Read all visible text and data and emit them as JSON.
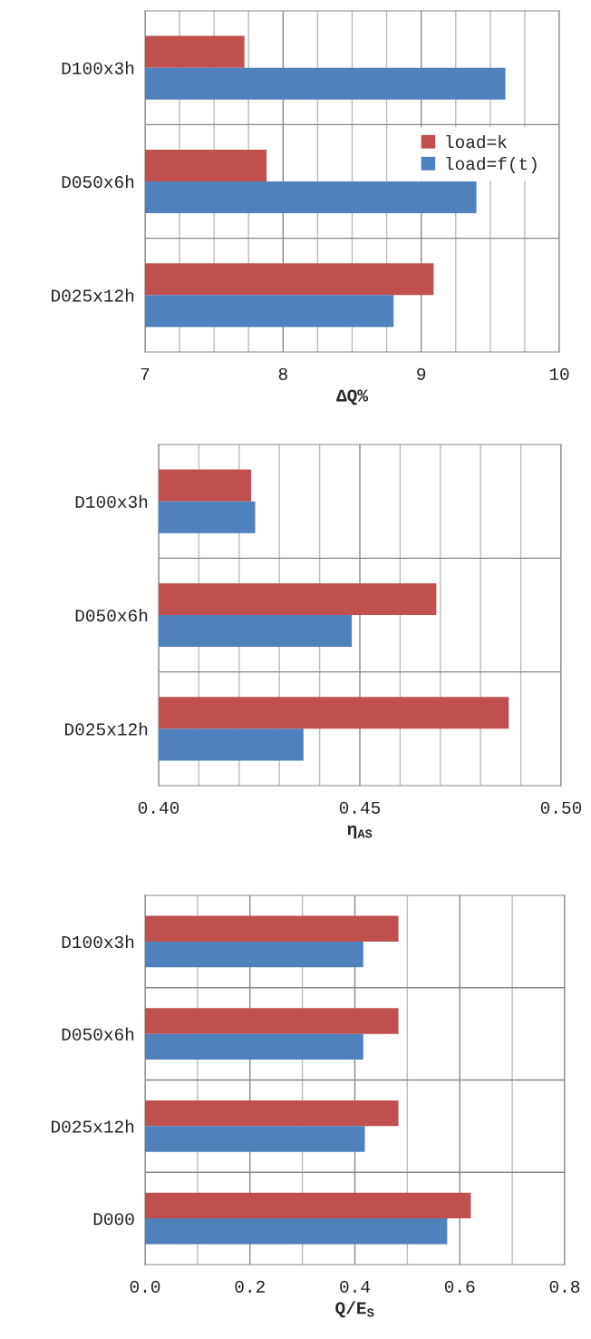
{
  "chart_data": [
    {
      "type": "bar",
      "orientation": "horizontal",
      "categories": [
        "D100x3h",
        "D050x6h",
        "D025x12h"
      ],
      "xlabel": "ΔQ%",
      "series": [
        {
          "name": "load=k",
          "color": "#c0504d",
          "values": [
            7.72,
            7.88,
            9.09
          ]
        },
        {
          "name": "load=f(t)",
          "color": "#4f81bd",
          "values": [
            9.61,
            9.4,
            8.8
          ]
        }
      ],
      "xlim": [
        7,
        10
      ],
      "xticks": [
        7,
        {
          "value": 7.25,
          "label": null
        },
        {
          "value": 7.5,
          "label": null
        },
        {
          "value": 7.75,
          "label": null
        },
        8,
        {
          "value": 8.25,
          "label": null
        },
        {
          "value": 8.5,
          "label": null
        },
        {
          "value": 8.75,
          "label": null
        },
        9,
        {
          "value": 9.25,
          "label": null
        },
        {
          "value": 9.5,
          "label": null
        },
        {
          "value": 9.75,
          "label": null
        },
        10
      ],
      "grid": true,
      "legend": "center right"
    },
    {
      "type": "bar",
      "orientation": "horizontal",
      "categories": [
        "D100x3h",
        "D050x6h",
        "D025x12h"
      ],
      "xlabel": "η$_{AS}$",
      "series": [
        {
          "color": "#c0504d",
          "values": [
            0.423,
            0.469,
            0.487
          ]
        },
        {
          "color": "#4f81bd",
          "values": [
            0.424,
            0.448,
            0.436
          ]
        }
      ],
      "xlim": [
        0.4,
        0.5
      ],
      "xticks": [
        {
          "value": 0.4,
          "label": "0.40"
        },
        {
          "value": 0.41,
          "label": null
        },
        {
          "value": 0.42,
          "label": null
        },
        {
          "value": 0.43,
          "label": null
        },
        {
          "value": 0.44,
          "label": null
        },
        {
          "value": 0.45,
          "label": "0.45"
        },
        {
          "value": 0.46,
          "label": null
        },
        {
          "value": 0.47,
          "label": null
        },
        {
          "value": 0.48,
          "label": null
        },
        {
          "value": 0.49,
          "label": null
        },
        {
          "value": 0.5,
          "label": "0.50"
        }
      ],
      "grid": true,
      "legend": false
    },
    {
      "type": "bar",
      "orientation": "horizontal",
      "categories": [
        "D100x3h",
        "D050x6h",
        "D025x12h",
        "D000"
      ],
      "xlabel": "Q/E$_{S}$",
      "series": [
        {
          "color": "#c0504d",
          "values": [
            0.483,
            0.483,
            0.483,
            0.621
          ]
        },
        {
          "color": "#4f81bd",
          "values": [
            0.416,
            0.416,
            0.419,
            0.576
          ]
        }
      ],
      "xlim": [
        0,
        0.8
      ],
      "xticks": [
        {
          "value": 0,
          "label": "0.0"
        },
        {
          "value": 0.1,
          "label": null
        },
        {
          "value": 0.2,
          "label": "0.2"
        },
        {
          "value": 0.3,
          "label": null
        },
        {
          "value": 0.4,
          "label": "0.4"
        },
        {
          "value": 0.5,
          "label": null
        },
        {
          "value": 0.6,
          "label": "0.6"
        },
        {
          "value": 0.7,
          "label": null
        },
        {
          "value": 0.8,
          "label": "0.8"
        }
      ],
      "grid": true,
      "legend": false
    }
  ]
}
